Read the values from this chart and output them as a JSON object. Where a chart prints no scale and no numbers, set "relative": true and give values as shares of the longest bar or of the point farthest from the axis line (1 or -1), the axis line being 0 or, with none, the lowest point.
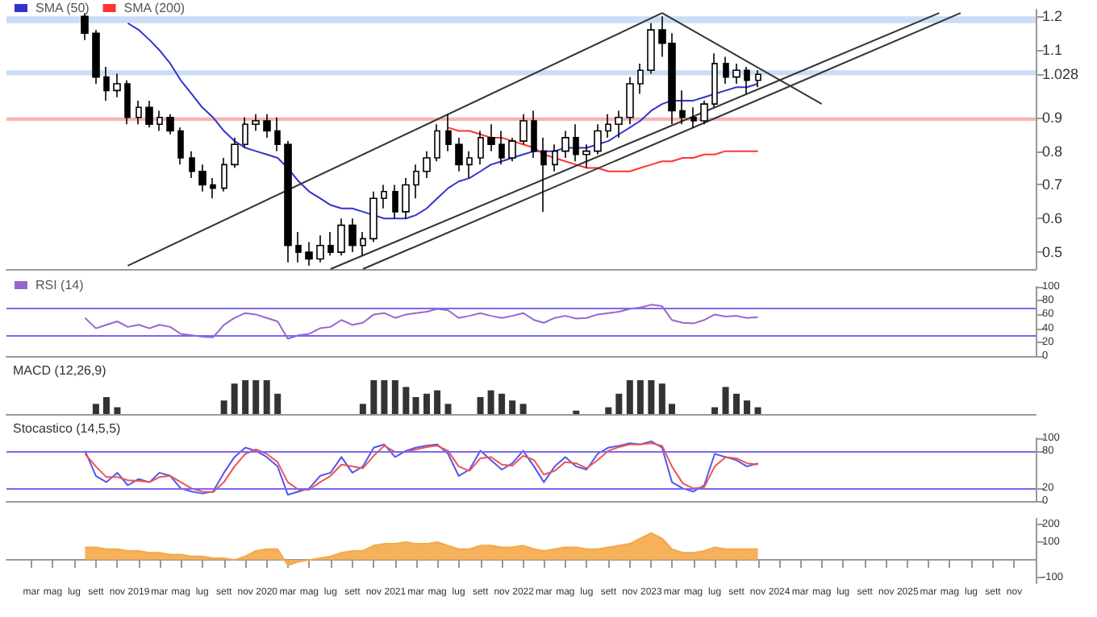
{
  "chart_data": [
    {
      "type": "candlestick",
      "color": "#000000",
      "x": [
        "2018-08",
        "2018-09",
        "2018-10",
        "2018-11",
        "2018-12",
        "2019-01",
        "2019-02",
        "2019-03",
        "2019-04",
        "2019-05",
        "2019-06",
        "2019-07",
        "2019-08",
        "2019-09",
        "2019-10",
        "2019-11",
        "2019-12",
        "2020-01",
        "2020-02",
        "2020-03",
        "2020-04",
        "2020-05",
        "2020-06",
        "2020-07",
        "2020-08",
        "2020-09",
        "2020-10",
        "2020-11",
        "2020-12",
        "2021-01",
        "2021-02",
        "2021-03",
        "2021-04",
        "2021-05",
        "2021-06",
        "2021-07",
        "2021-08",
        "2021-09",
        "2021-10",
        "2021-11",
        "2021-12",
        "2022-01",
        "2022-02",
        "2022-03",
        "2022-04",
        "2022-05",
        "2022-06",
        "2022-07",
        "2022-08",
        "2022-09",
        "2022-10",
        "2022-11",
        "2022-12",
        "2023-01",
        "2023-02",
        "2023-03",
        "2023-04",
        "2023-05",
        "2023-06",
        "2023-07",
        "2023-08",
        "2023-09",
        "2023-10",
        "2023-11"
      ],
      "ohlc": [
        [
          1.2,
          1.21,
          1.13,
          1.15
        ],
        [
          1.15,
          1.16,
          1.0,
          1.02
        ],
        [
          1.02,
          1.05,
          0.95,
          0.98
        ],
        [
          0.98,
          1.03,
          0.96,
          1.0
        ],
        [
          1.0,
          1.01,
          0.88,
          0.9
        ],
        [
          0.9,
          0.95,
          0.88,
          0.93
        ],
        [
          0.93,
          0.95,
          0.87,
          0.88
        ],
        [
          0.88,
          0.92,
          0.86,
          0.9
        ],
        [
          0.9,
          0.91,
          0.85,
          0.86
        ],
        [
          0.86,
          0.87,
          0.76,
          0.78
        ],
        [
          0.78,
          0.8,
          0.72,
          0.74
        ],
        [
          0.74,
          0.76,
          0.68,
          0.7
        ],
        [
          0.7,
          0.72,
          0.66,
          0.69
        ],
        [
          0.69,
          0.78,
          0.68,
          0.76
        ],
        [
          0.76,
          0.84,
          0.75,
          0.82
        ],
        [
          0.82,
          0.9,
          0.81,
          0.88
        ],
        [
          0.88,
          0.91,
          0.86,
          0.89
        ],
        [
          0.89,
          0.91,
          0.84,
          0.86
        ],
        [
          0.86,
          0.9,
          0.8,
          0.82
        ],
        [
          0.82,
          0.83,
          0.47,
          0.52
        ],
        [
          0.52,
          0.56,
          0.47,
          0.5
        ],
        [
          0.5,
          0.53,
          0.46,
          0.48
        ],
        [
          0.48,
          0.55,
          0.47,
          0.52
        ],
        [
          0.52,
          0.56,
          0.49,
          0.5
        ],
        [
          0.5,
          0.6,
          0.49,
          0.58
        ],
        [
          0.58,
          0.6,
          0.5,
          0.52
        ],
        [
          0.52,
          0.56,
          0.49,
          0.54
        ],
        [
          0.54,
          0.68,
          0.53,
          0.66
        ],
        [
          0.66,
          0.7,
          0.63,
          0.68
        ],
        [
          0.68,
          0.7,
          0.6,
          0.62
        ],
        [
          0.62,
          0.72,
          0.6,
          0.7
        ],
        [
          0.7,
          0.76,
          0.66,
          0.74
        ],
        [
          0.74,
          0.8,
          0.72,
          0.78
        ],
        [
          0.78,
          0.88,
          0.77,
          0.86
        ],
        [
          0.86,
          0.91,
          0.8,
          0.82
        ],
        [
          0.82,
          0.84,
          0.74,
          0.76
        ],
        [
          0.76,
          0.8,
          0.72,
          0.78
        ],
        [
          0.78,
          0.86,
          0.76,
          0.84
        ],
        [
          0.84,
          0.88,
          0.8,
          0.82
        ],
        [
          0.82,
          0.86,
          0.76,
          0.78
        ],
        [
          0.78,
          0.84,
          0.77,
          0.83
        ],
        [
          0.83,
          0.91,
          0.82,
          0.89
        ],
        [
          0.89,
          0.92,
          0.78,
          0.8
        ],
        [
          0.8,
          0.84,
          0.62,
          0.76
        ],
        [
          0.76,
          0.82,
          0.74,
          0.8
        ],
        [
          0.8,
          0.86,
          0.78,
          0.84
        ],
        [
          0.84,
          0.88,
          0.77,
          0.79
        ],
        [
          0.79,
          0.82,
          0.75,
          0.8
        ],
        [
          0.8,
          0.88,
          0.79,
          0.86
        ],
        [
          0.86,
          0.91,
          0.84,
          0.88
        ],
        [
          0.88,
          0.92,
          0.84,
          0.9
        ],
        [
          0.9,
          1.02,
          0.88,
          1.0
        ],
        [
          1.0,
          1.06,
          0.97,
          1.04
        ],
        [
          1.04,
          1.18,
          1.03,
          1.16
        ],
        [
          1.16,
          1.2,
          1.08,
          1.12
        ],
        [
          1.12,
          1.15,
          0.88,
          0.92
        ],
        [
          0.92,
          0.98,
          0.88,
          0.9
        ],
        [
          0.9,
          0.93,
          0.87,
          0.89
        ],
        [
          0.89,
          0.95,
          0.88,
          0.94
        ],
        [
          0.94,
          1.09,
          0.93,
          1.06
        ],
        [
          1.06,
          1.08,
          1.0,
          1.02
        ],
        [
          1.02,
          1.06,
          1.0,
          1.04
        ],
        [
          1.04,
          1.05,
          0.97,
          1.01
        ],
        [
          1.01,
          1.04,
          0.99,
          1.028
        ]
      ],
      "series": [
        {
          "name": "SMA (50)",
          "type": "line",
          "color": "#3333cc",
          "values": [
            null,
            null,
            null,
            null,
            1.18,
            1.16,
            1.13,
            1.1,
            1.06,
            1.01,
            0.97,
            0.93,
            0.9,
            0.86,
            0.83,
            0.81,
            0.8,
            0.79,
            0.78,
            0.75,
            0.71,
            0.68,
            0.66,
            0.64,
            0.63,
            0.63,
            0.62,
            0.61,
            0.6,
            0.6,
            0.6,
            0.61,
            0.63,
            0.66,
            0.69,
            0.71,
            0.72,
            0.74,
            0.76,
            0.77,
            0.78,
            0.79,
            0.8,
            0.8,
            0.8,
            0.81,
            0.81,
            0.81,
            0.82,
            0.83,
            0.85,
            0.87,
            0.89,
            0.92,
            0.94,
            0.95,
            0.95,
            0.95,
            0.96,
            0.97,
            0.98,
            0.99,
            0.99,
            1.0
          ]
        },
        {
          "name": "SMA (200)",
          "type": "line",
          "color": "#ff3333",
          "values": [
            null,
            null,
            null,
            null,
            null,
            null,
            null,
            null,
            null,
            null,
            null,
            null,
            null,
            null,
            null,
            null,
            null,
            null,
            null,
            null,
            null,
            null,
            null,
            null,
            null,
            null,
            null,
            null,
            null,
            null,
            null,
            null,
            null,
            null,
            0.87,
            0.86,
            0.86,
            0.85,
            0.84,
            0.84,
            0.83,
            0.82,
            0.81,
            0.79,
            0.78,
            0.77,
            0.76,
            0.75,
            0.75,
            0.74,
            0.74,
            0.74,
            0.75,
            0.76,
            0.77,
            0.77,
            0.78,
            0.78,
            0.79,
            0.79,
            0.8,
            0.8,
            0.8,
            0.8
          ]
        },
        {
          "type": "line",
          "color": "#333333",
          "x": [
            "2018-12",
            "2023-02"
          ],
          "values": [
            0.46,
            1.21
          ]
        },
        {
          "type": "line",
          "color": "#333333",
          "x": [
            "2023-02",
            "2024-05"
          ],
          "values": [
            1.21,
            0.94
          ]
        },
        {
          "type": "line",
          "color": "#333333",
          "x": [
            "2020-07",
            "2025-04"
          ],
          "values": [
            0.45,
            1.21
          ]
        },
        {
          "type": "line",
          "color": "#333333",
          "x": [
            "2020-10",
            "2025-06"
          ],
          "values": [
            0.45,
            1.21
          ]
        }
      ],
      "xlim": [
        "2017-12-20",
        "2026-01-01"
      ],
      "ylim": [
        0.45,
        1.22
      ],
      "yticks": [
        0.5,
        0.6,
        0.7,
        0.8,
        0.9,
        1.1,
        1.2,
        {
          "value": 1.028,
          "label": "1.028"
        }
      ],
      "bands": [
        {
          "axis": "y",
          "from": 1.18,
          "to": 1.2,
          "color": "#a8c4f0"
        },
        {
          "axis": "y",
          "from": 1.025,
          "to": 1.04,
          "color": "#a8c4f0"
        },
        {
          "axis": "y",
          "from": 0.89,
          "to": 0.9,
          "color": "#f08080"
        }
      ],
      "legend": "top left",
      "tick_labels": "y"
    },
    {
      "type": "line",
      "x": [
        "2018-08",
        "2018-09",
        "2018-10",
        "2018-11",
        "2018-12",
        "2019-01",
        "2019-02",
        "2019-03",
        "2019-04",
        "2019-05",
        "2019-06",
        "2019-07",
        "2019-08",
        "2019-09",
        "2019-10",
        "2019-11",
        "2019-12",
        "2020-01",
        "2020-02",
        "2020-03",
        "2020-04",
        "2020-05",
        "2020-06",
        "2020-07",
        "2020-08",
        "2020-09",
        "2020-10",
        "2020-11",
        "2020-12",
        "2021-01",
        "2021-02",
        "2021-03",
        "2021-04",
        "2021-05",
        "2021-06",
        "2021-07",
        "2021-08",
        "2021-09",
        "2021-10",
        "2021-11",
        "2021-12",
        "2022-01",
        "2022-02",
        "2022-03",
        "2022-04",
        "2022-05",
        "2022-06",
        "2022-07",
        "2022-08",
        "2022-09",
        "2022-10",
        "2022-11",
        "2022-12",
        "2023-01",
        "2023-02",
        "2023-03",
        "2023-04",
        "2023-05",
        "2023-06",
        "2023-07",
        "2023-08",
        "2023-09",
        "2023-10",
        "2023-11"
      ],
      "series": [
        {
          "name": "RSI (14)",
          "color": "#9966cc",
          "values": [
            55,
            40,
            45,
            50,
            42,
            45,
            40,
            45,
            42,
            32,
            30,
            28,
            27,
            45,
            55,
            62,
            60,
            55,
            50,
            25,
            30,
            32,
            40,
            42,
            52,
            45,
            48,
            60,
            62,
            55,
            60,
            62,
            64,
            68,
            66,
            55,
            58,
            62,
            58,
            55,
            58,
            62,
            52,
            48,
            55,
            58,
            54,
            55,
            60,
            62,
            64,
            68,
            70,
            74,
            72,
            52,
            48,
            47,
            52,
            60,
            57,
            58,
            55,
            56
          ]
        }
      ],
      "xlim": [
        "2017-12-20",
        "2026-01-01"
      ],
      "ylim": [
        0,
        100
      ],
      "yticks": [
        0,
        20,
        40,
        60,
        80,
        100
      ],
      "ref_lines": [
        {
          "axis": "y",
          "value": 70,
          "color": "#7b68ee"
        },
        {
          "axis": "y",
          "value": 30,
          "color": "#7b68ee"
        }
      ],
      "legend": "top left",
      "tick_labels": "y"
    },
    {
      "type": "bar",
      "relative": true,
      "color": "#333333",
      "x": [
        "2018-08",
        "2018-09",
        "2018-10",
        "2018-11",
        "2018-12",
        "2019-01",
        "2019-02",
        "2019-03",
        "2019-04",
        "2019-05",
        "2019-06",
        "2019-07",
        "2019-08",
        "2019-09",
        "2019-10",
        "2019-11",
        "2019-12",
        "2020-01",
        "2020-02",
        "2020-03",
        "2020-04",
        "2020-05",
        "2020-06",
        "2020-07",
        "2020-08",
        "2020-09",
        "2020-10",
        "2020-11",
        "2020-12",
        "2021-01",
        "2021-02",
        "2021-03",
        "2021-04",
        "2021-05",
        "2021-06",
        "2021-07",
        "2021-08",
        "2021-09",
        "2021-10",
        "2021-11",
        "2021-12",
        "2022-01",
        "2022-02",
        "2022-03",
        "2022-04",
        "2022-05",
        "2022-06",
        "2022-07",
        "2022-08",
        "2022-09",
        "2022-10",
        "2022-11",
        "2022-12",
        "2023-01",
        "2023-02",
        "2023-03",
        "2023-04",
        "2023-05",
        "2023-06",
        "2023-07",
        "2023-08",
        "2023-09",
        "2023-10",
        "2023-11"
      ],
      "values": [
        0,
        0.3,
        0.5,
        0.2,
        0,
        0,
        0,
        0,
        0,
        0,
        0,
        0,
        0,
        0.4,
        0.9,
        1,
        1,
        1,
        0.6,
        0,
        0,
        0,
        0,
        0,
        0,
        0,
        0.3,
        1,
        1,
        1,
        0.8,
        0.5,
        0.6,
        0.7,
        0.3,
        0,
        0,
        0.5,
        0.7,
        0.6,
        0.4,
        0.3,
        0,
        0,
        0,
        0,
        0.1,
        0,
        0,
        0.2,
        0.6,
        1,
        1,
        1,
        0.9,
        0.3,
        0,
        0,
        0,
        0.2,
        0.8,
        0.6,
        0.4,
        0.2
      ],
      "xlim": [
        "2017-12-20",
        "2026-01-01"
      ],
      "title": "MACD (12,26,9)",
      "tick_labels": false
    },
    {
      "type": "line",
      "x": [
        "2018-08",
        "2018-09",
        "2018-10",
        "2018-11",
        "2018-12",
        "2019-01",
        "2019-02",
        "2019-03",
        "2019-04",
        "2019-05",
        "2019-06",
        "2019-07",
        "2019-08",
        "2019-09",
        "2019-10",
        "2019-11",
        "2019-12",
        "2020-01",
        "2020-02",
        "2020-03",
        "2020-04",
        "2020-05",
        "2020-06",
        "2020-07",
        "2020-08",
        "2020-09",
        "2020-10",
        "2020-11",
        "2020-12",
        "2021-01",
        "2021-02",
        "2021-03",
        "2021-04",
        "2021-05",
        "2021-06",
        "2021-07",
        "2021-08",
        "2021-09",
        "2021-10",
        "2021-11",
        "2021-12",
        "2022-01",
        "2022-02",
        "2022-03",
        "2022-04",
        "2022-05",
        "2022-06",
        "2022-07",
        "2022-08",
        "2022-09",
        "2022-10",
        "2022-11",
        "2022-12",
        "2023-01",
        "2023-02",
        "2023-03",
        "2023-04",
        "2023-05",
        "2023-06",
        "2023-07",
        "2023-08",
        "2023-09",
        "2023-10",
        "2023-11"
      ],
      "series": [
        {
          "color": "#5555ee",
          "values": [
            80,
            40,
            30,
            45,
            25,
            35,
            30,
            45,
            40,
            20,
            15,
            12,
            15,
            45,
            70,
            85,
            80,
            70,
            55,
            10,
            15,
            20,
            40,
            45,
            70,
            45,
            55,
            85,
            90,
            70,
            80,
            85,
            88,
            90,
            75,
            40,
            50,
            80,
            65,
            50,
            60,
            80,
            55,
            30,
            55,
            70,
            55,
            50,
            75,
            85,
            88,
            92,
            90,
            95,
            85,
            30,
            20,
            15,
            25,
            75,
            70,
            65,
            55,
            60
          ]
        },
        {
          "color": "#ee5555",
          "values": [
            75,
            55,
            38,
            38,
            33,
            32,
            30,
            38,
            40,
            30,
            20,
            15,
            14,
            30,
            55,
            75,
            82,
            75,
            62,
            30,
            18,
            18,
            30,
            40,
            58,
            55,
            52,
            72,
            88,
            78,
            78,
            82,
            86,
            88,
            80,
            55,
            48,
            68,
            70,
            58,
            56,
            72,
            65,
            42,
            48,
            62,
            60,
            52,
            65,
            80,
            86,
            90,
            90,
            92,
            88,
            55,
            28,
            20,
            22,
            55,
            70,
            68,
            60,
            58
          ]
        }
      ],
      "xlim": [
        "2017-12-20",
        "2026-01-01"
      ],
      "ylim": [
        0,
        100
      ],
      "yticks": [
        0,
        20,
        80,
        100
      ],
      "title": "Stocastico (14,5,5)",
      "ref_lines": [
        {
          "axis": "y",
          "value": 80,
          "color": "#7b68ee"
        },
        {
          "axis": "y",
          "value": 20,
          "color": "#7b68ee"
        }
      ],
      "tick_labels": "y"
    },
    {
      "type": "area",
      "x": [
        "2018-08",
        "2018-09",
        "2018-10",
        "2018-11",
        "2018-12",
        "2019-01",
        "2019-02",
        "2019-03",
        "2019-04",
        "2019-05",
        "2019-06",
        "2019-07",
        "2019-08",
        "2019-09",
        "2019-10",
        "2019-11",
        "2019-12",
        "2020-01",
        "2020-02",
        "2020-03",
        "2020-04",
        "2020-05",
        "2020-06",
        "2020-07",
        "2020-08",
        "2020-09",
        "2020-10",
        "2020-11",
        "2020-12",
        "2021-01",
        "2021-02",
        "2021-03",
        "2021-04",
        "2021-05",
        "2021-06",
        "2021-07",
        "2021-08",
        "2021-09",
        "2021-10",
        "2021-11",
        "2021-12",
        "2022-01",
        "2022-02",
        "2022-03",
        "2022-04",
        "2022-05",
        "2022-06",
        "2022-07",
        "2022-08",
        "2022-09",
        "2022-10",
        "2022-11",
        "2022-12",
        "2023-01",
        "2023-02",
        "2023-03",
        "2023-04",
        "2023-05",
        "2023-06",
        "2023-07",
        "2023-08",
        "2023-09",
        "2023-10",
        "2023-11"
      ],
      "series": [
        {
          "color": "#f5a94a",
          "values": [
            70,
            70,
            60,
            60,
            50,
            50,
            40,
            40,
            30,
            30,
            20,
            20,
            10,
            10,
            0,
            20,
            50,
            60,
            60,
            -30,
            -10,
            0,
            10,
            20,
            40,
            50,
            50,
            80,
            90,
            90,
            100,
            90,
            90,
            100,
            80,
            60,
            60,
            80,
            80,
            70,
            70,
            80,
            60,
            50,
            60,
            70,
            70,
            60,
            60,
            70,
            80,
            90,
            120,
            150,
            120,
            60,
            40,
            40,
            50,
            70,
            60,
            60,
            60,
            60
          ]
        }
      ],
      "xlim": [
        "2017-12-20",
        "2026-01-01"
      ],
      "ylim": [
        -130,
        230
      ],
      "yticks": [
        -100,
        100,
        200
      ],
      "xticks": [
        {
          "value": "2018-03",
          "label": "mar"
        },
        {
          "value": "2018-05",
          "label": "mag"
        },
        {
          "value": "2018-07",
          "label": "lug"
        },
        {
          "value": "2018-09",
          "label": "sett"
        },
        {
          "value": "2018-11",
          "label": "nov"
        },
        {
          "value": "2019-01",
          "label": "2019"
        },
        {
          "value": "2019-03",
          "label": "mar"
        },
        {
          "value": "2019-05",
          "label": "mag"
        },
        {
          "value": "2019-07",
          "label": "lug"
        },
        {
          "value": "2019-09",
          "label": "sett"
        },
        {
          "value": "2019-11",
          "label": "nov"
        },
        {
          "value": "2020-01",
          "label": "2020"
        },
        {
          "value": "2020-03",
          "label": "mar"
        },
        {
          "value": "2020-05",
          "label": "mag"
        },
        {
          "value": "2020-07",
          "label": "lug"
        },
        {
          "value": "2020-09",
          "label": "sett"
        },
        {
          "value": "2020-11",
          "label": "nov"
        },
        {
          "value": "2021-01",
          "label": "2021"
        },
        {
          "value": "2021-03",
          "label": "mar"
        },
        {
          "value": "2021-05",
          "label": "mag"
        },
        {
          "value": "2021-07",
          "label": "lug"
        },
        {
          "value": "2021-09",
          "label": "sett"
        },
        {
          "value": "2021-11",
          "label": "nov"
        },
        {
          "value": "2022-01",
          "label": "2022"
        },
        {
          "value": "2022-03",
          "label": "mar"
        },
        {
          "value": "2022-05",
          "label": "mag"
        },
        {
          "value": "2022-07",
          "label": "lug"
        },
        {
          "value": "2022-09",
          "label": "sett"
        },
        {
          "value": "2022-11",
          "label": "nov"
        },
        {
          "value": "2023-01",
          "label": "2023"
        },
        {
          "value": "2023-03",
          "label": "mar"
        },
        {
          "value": "2023-05",
          "label": "mag"
        },
        {
          "value": "2023-07",
          "label": "lug"
        },
        {
          "value": "2023-09",
          "label": "sett"
        },
        {
          "value": "2023-11",
          "label": "nov"
        },
        {
          "value": "2024-01",
          "label": "2024"
        },
        {
          "value": "2024-03",
          "label": "mar"
        },
        {
          "value": "2024-05",
          "label": "mag"
        },
        {
          "value": "2024-07",
          "label": "lug"
        },
        {
          "value": "2024-09",
          "label": "sett"
        },
        {
          "value": "2024-11",
          "label": "nov"
        },
        {
          "value": "2025-01",
          "label": "2025"
        },
        {
          "value": "2025-03",
          "label": "mar"
        },
        {
          "value": "2025-05",
          "label": "mag"
        },
        {
          "value": "2025-07",
          "label": "lug"
        },
        {
          "value": "2025-09",
          "label": "sett"
        },
        {
          "value": "2025-11",
          "label": "nov"
        }
      ]
    }
  ]
}
